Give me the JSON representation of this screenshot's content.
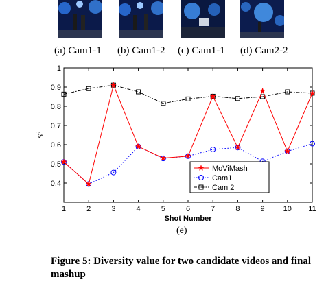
{
  "figure": {
    "subcaptions": [
      "(a) Cam1-1",
      "(b) Cam1-2",
      "(c) Cam1-1",
      "(d) Cam2-2"
    ],
    "chart_subcaption": "(e)",
    "caption": "Figure 5: Diversity value for two candidate videos and final mashup"
  },
  "chart_data": {
    "type": "line",
    "xlabel": "Shot Number",
    "ylabel": "S",
    "ylabel_superscript": "d",
    "x": [
      1,
      2,
      3,
      4,
      5,
      6,
      7,
      8,
      9,
      10,
      11
    ],
    "xlim": [
      1,
      11
    ],
    "ylim": [
      0.3,
      1.0
    ],
    "yticks": [
      0.4,
      0.5,
      0.6,
      0.7,
      0.8,
      0.9,
      1
    ],
    "legend_position": "lower-right",
    "grid": false,
    "series": [
      {
        "name": "MoViMash",
        "color": "#ff0000",
        "marker": "star",
        "line": "solid",
        "values": [
          0.51,
          0.395,
          0.91,
          0.59,
          0.53,
          0.54,
          0.852,
          0.585,
          0.88,
          0.565,
          0.868
        ]
      },
      {
        "name": "Cam1",
        "color": "#0000ff",
        "marker": "circle",
        "line": "dotted",
        "values": [
          0.51,
          0.395,
          0.455,
          0.59,
          0.528,
          0.54,
          0.575,
          0.585,
          0.513,
          0.565,
          0.605
        ]
      },
      {
        "name": "Cam 2",
        "color": "#000000",
        "marker": "square",
        "line": "dashdot",
        "values": [
          0.863,
          0.892,
          0.91,
          0.875,
          0.815,
          0.838,
          0.852,
          0.84,
          0.85,
          0.875,
          0.868
        ]
      }
    ]
  }
}
